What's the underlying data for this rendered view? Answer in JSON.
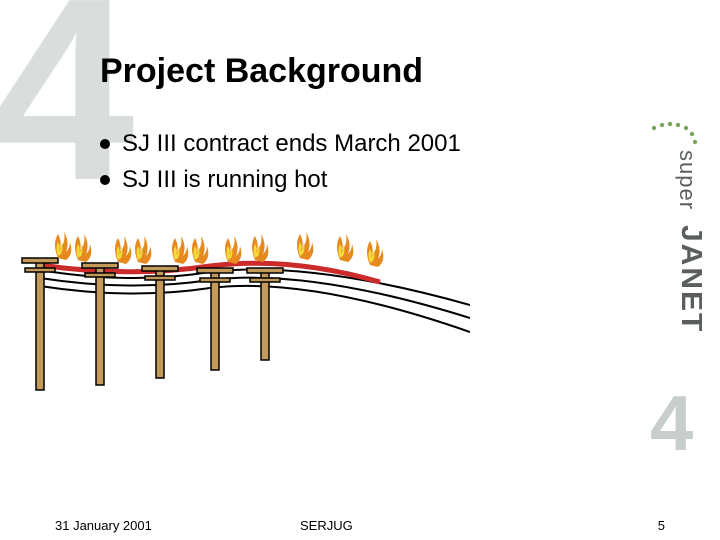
{
  "background_numeral": "4",
  "title": "Project Background",
  "bullets": [
    "SJ III contract ends March 2001",
    "SJ III is running hot"
  ],
  "footer": {
    "date": "31 January 2001",
    "center": "SERJUG",
    "page": "5"
  },
  "logo": {
    "text_top": "super",
    "text_bottom": "JANET",
    "numeral": "4",
    "dot_color": "#7aa65c",
    "text_color": "#5a5f5c",
    "numeral_color": "#c8cec9"
  },
  "illustration": {
    "pole_color": "#c49a5a",
    "pole_outline": "#000000",
    "wire_color": "#000000",
    "fire_wire_color": "#cc2b2b",
    "flame_outer": "#e68a1f",
    "flame_inner": "#f4d93a",
    "num_poles": 5
  },
  "colors": {
    "background": "#ffffff",
    "bg_numeral": "#d9dedc",
    "text": "#000000"
  }
}
